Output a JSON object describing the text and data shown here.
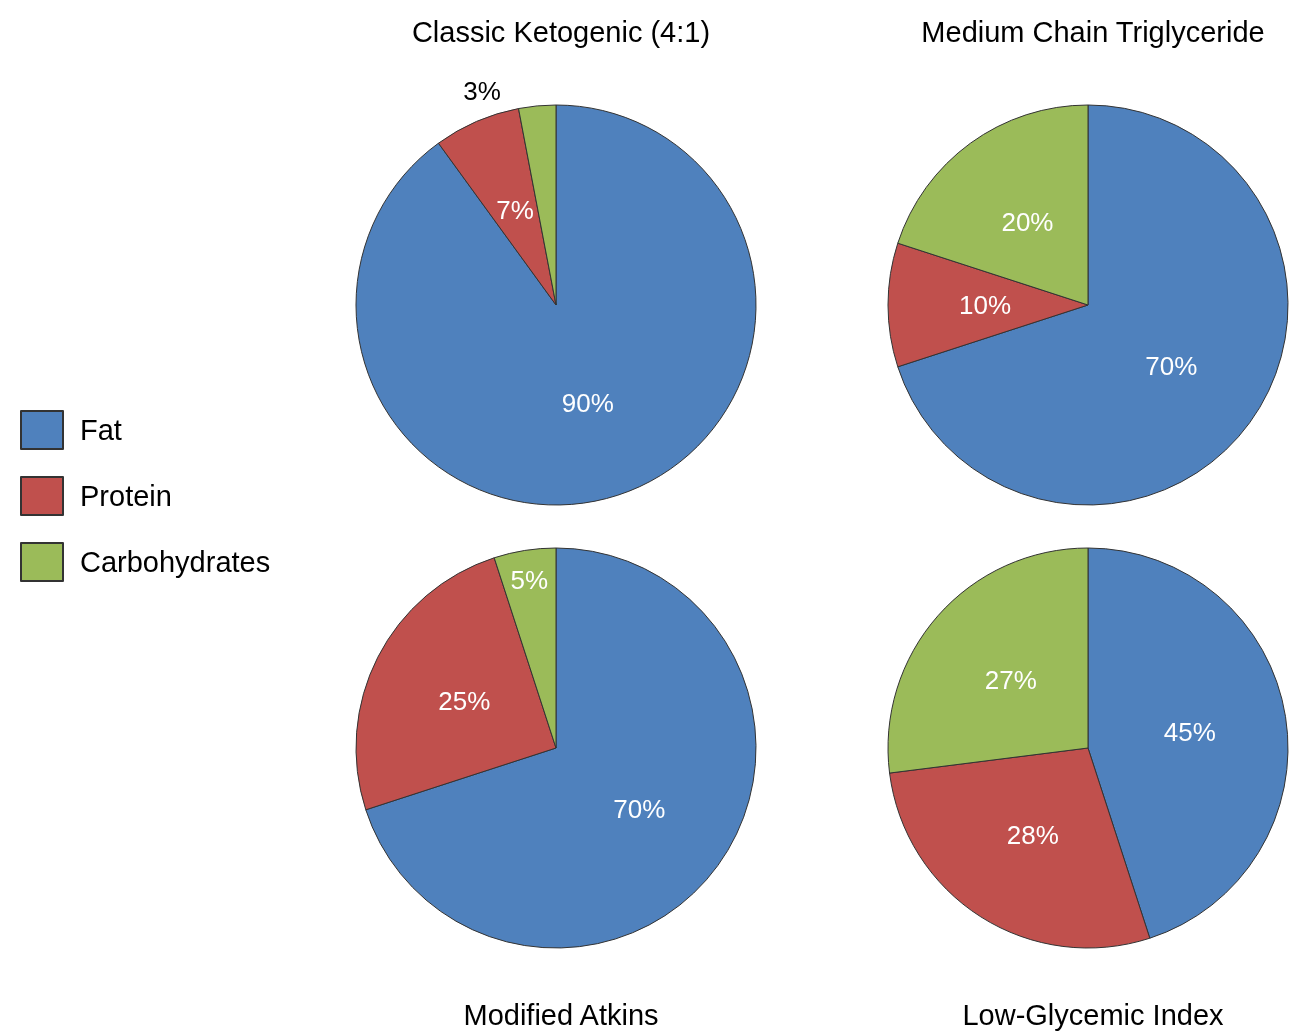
{
  "chart_data": [
    {
      "type": "pie",
      "title": "Classic Ketogenic (4:1)",
      "categories": [
        "Fat",
        "Protein",
        "Carbohydrates"
      ],
      "values": [
        90,
        7,
        3
      ],
      "colors": [
        "#4f81bd",
        "#c0504d",
        "#9bbb59"
      ],
      "value_labels": [
        "90%",
        "7%",
        "3%"
      ],
      "legend": "left"
    },
    {
      "type": "pie",
      "title": "Medium Chain Triglyceride",
      "values": [
        70,
        10,
        20
      ],
      "colors": [
        "#4f81bd",
        "#c0504d",
        "#9bbb59"
      ],
      "value_labels": [
        "70%",
        "10%",
        "20%"
      ]
    },
    {
      "type": "pie",
      "title": "Modified Atkins",
      "values": [
        70,
        25,
        5
      ],
      "colors": [
        "#4f81bd",
        "#c0504d",
        "#9bbb59"
      ],
      "value_labels": [
        "70%",
        "25%",
        "5%"
      ]
    },
    {
      "type": "pie",
      "title": "Low-Glycemic Index",
      "values": [
        45,
        28,
        27
      ],
      "colors": [
        "#4f81bd",
        "#c0504d",
        "#9bbb59"
      ],
      "value_labels": [
        "45%",
        "28%",
        "27%"
      ]
    }
  ]
}
